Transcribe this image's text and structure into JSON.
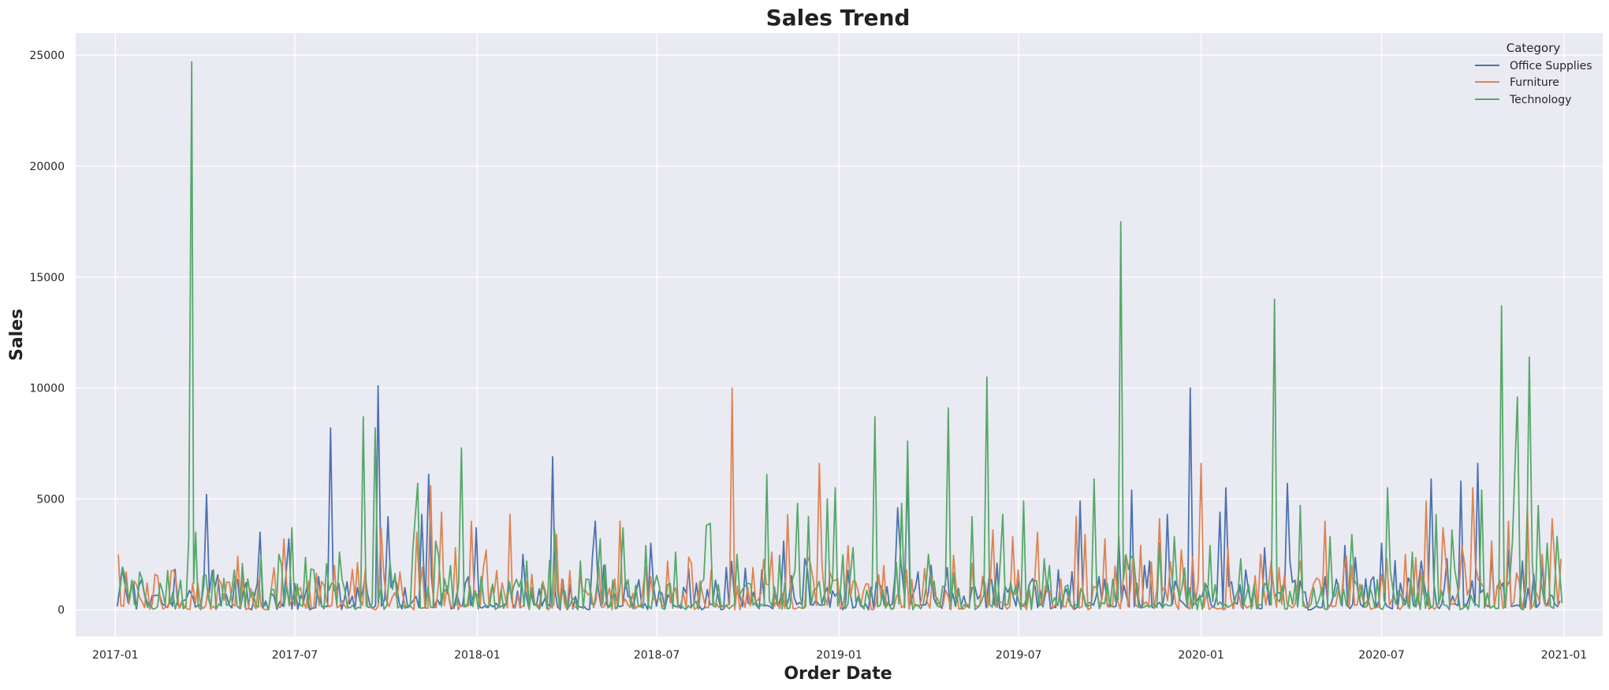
{
  "chart_data": {
    "type": "line",
    "title": "Sales Trend",
    "xlabel": "Order Date",
    "ylabel": "Sales",
    "x_ticks": [
      "2017-01",
      "2017-07",
      "2018-01",
      "2018-07",
      "2019-01",
      "2019-07",
      "2020-01",
      "2020-07",
      "2021-01"
    ],
    "y_ticks": [
      0,
      5000,
      10000,
      15000,
      20000,
      25000
    ],
    "xlim": [
      "2016-11-22",
      "2021-02-09"
    ],
    "ylim": [
      -1200,
      26000
    ],
    "grid": true,
    "legend": {
      "title": "Category",
      "position": "top-right"
    },
    "series": [
      {
        "name": "Office Supplies",
        "color": "#4c72b0",
        "points": [
          [
            "2017-01-03",
            150
          ],
          [
            "2017-01-08",
            1900
          ],
          [
            "2017-01-14",
            300
          ],
          [
            "2017-02-02",
            350
          ],
          [
            "2017-02-20",
            200
          ],
          [
            "2017-03-10",
            400
          ],
          [
            "2017-03-20",
            600
          ],
          [
            "2017-04-03",
            5200
          ],
          [
            "2017-04-20",
            700
          ],
          [
            "2017-05-10",
            800
          ],
          [
            "2017-05-27",
            3500
          ],
          [
            "2017-06-10",
            600
          ],
          [
            "2017-06-25",
            3200
          ],
          [
            "2017-07-10",
            400
          ],
          [
            "2017-07-25",
            1500
          ],
          [
            "2017-08-06",
            8200
          ],
          [
            "2017-08-20",
            500
          ],
          [
            "2017-09-10",
            1500
          ],
          [
            "2017-09-23",
            10100
          ],
          [
            "2017-10-03",
            4200
          ],
          [
            "2017-10-20",
            1000
          ],
          [
            "2017-11-06",
            4300
          ],
          [
            "2017-11-13",
            6100
          ],
          [
            "2017-11-30",
            900
          ],
          [
            "2017-12-20",
            1200
          ],
          [
            "2017-12-31",
            3700
          ],
          [
            "2018-01-20",
            300
          ],
          [
            "2018-02-16",
            2500
          ],
          [
            "2018-03-10",
            500
          ],
          [
            "2018-03-18",
            6900
          ],
          [
            "2018-04-10",
            600
          ],
          [
            "2018-04-30",
            4000
          ],
          [
            "2018-05-20",
            700
          ],
          [
            "2018-06-10",
            800
          ],
          [
            "2018-06-25",
            3000
          ],
          [
            "2018-07-15",
            500
          ],
          [
            "2018-08-10",
            1200
          ],
          [
            "2018-09-01",
            600
          ],
          [
            "2018-09-20",
            800
          ],
          [
            "2018-10-15",
            1800
          ],
          [
            "2018-11-06",
            3100
          ],
          [
            "2018-11-30",
            1800
          ],
          [
            "2018-12-20",
            1000
          ],
          [
            "2019-01-20",
            600
          ],
          [
            "2019-02-10",
            1200
          ],
          [
            "2019-03-01",
            4600
          ],
          [
            "2019-03-11",
            6100
          ],
          [
            "2019-04-01",
            800
          ],
          [
            "2019-04-20",
            1900
          ],
          [
            "2019-05-15",
            1000
          ],
          [
            "2019-06-01",
            1400
          ],
          [
            "2019-06-20",
            800
          ],
          [
            "2019-07-15",
            1400
          ],
          [
            "2019-08-10",
            1800
          ],
          [
            "2019-09-01",
            4900
          ],
          [
            "2019-09-20",
            1500
          ],
          [
            "2019-10-10",
            3300
          ],
          [
            "2019-10-23",
            5400
          ],
          [
            "2019-11-10",
            2200
          ],
          [
            "2019-11-28",
            4300
          ],
          [
            "2019-12-21",
            10000
          ],
          [
            "2020-01-05",
            1200
          ],
          [
            "2020-01-20",
            4400
          ],
          [
            "2020-01-26",
            5500
          ],
          [
            "2020-02-15",
            1800
          ],
          [
            "2020-03-05",
            2800
          ],
          [
            "2020-03-28",
            5700
          ],
          [
            "2020-04-15",
            800
          ],
          [
            "2020-05-05",
            1500
          ],
          [
            "2020-05-25",
            2900
          ],
          [
            "2020-06-15",
            1400
          ],
          [
            "2020-07-01",
            3000
          ],
          [
            "2020-07-20",
            1200
          ],
          [
            "2020-08-10",
            2200
          ],
          [
            "2020-08-20",
            5900
          ],
          [
            "2020-09-05",
            2300
          ],
          [
            "2020-09-19",
            5800
          ],
          [
            "2020-10-06",
            6600
          ],
          [
            "2020-10-20",
            2500
          ],
          [
            "2020-11-06",
            2700
          ],
          [
            "2020-11-20",
            2200
          ],
          [
            "2020-12-10",
            2100
          ],
          [
            "2020-12-28",
            400
          ]
        ]
      },
      {
        "name": "Furniture",
        "color": "#dd8452",
        "points": [
          [
            "2017-01-04",
            2500
          ],
          [
            "2017-01-20",
            1300
          ],
          [
            "2017-02-10",
            1600
          ],
          [
            "2017-03-01",
            1800
          ],
          [
            "2017-03-20",
            1200
          ],
          [
            "2017-04-15",
            1400
          ],
          [
            "2017-05-10",
            1600
          ],
          [
            "2017-06-10",
            1900
          ],
          [
            "2017-06-20",
            3200
          ],
          [
            "2017-07-15",
            1300
          ],
          [
            "2017-08-10",
            2000
          ],
          [
            "2017-09-10",
            1800
          ],
          [
            "2017-09-26",
            3700
          ],
          [
            "2017-10-15",
            1700
          ],
          [
            "2017-11-01",
            3500
          ],
          [
            "2017-11-15",
            5600
          ],
          [
            "2017-11-26",
            4400
          ],
          [
            "2017-12-10",
            2800
          ],
          [
            "2017-12-26",
            4000
          ],
          [
            "2018-01-10",
            2700
          ],
          [
            "2018-02-03",
            4300
          ],
          [
            "2018-02-25",
            1600
          ],
          [
            "2018-03-22",
            3400
          ],
          [
            "2018-04-15",
            1500
          ],
          [
            "2018-05-25",
            4000
          ],
          [
            "2018-06-25",
            1500
          ],
          [
            "2018-07-12",
            2200
          ],
          [
            "2018-08-05",
            2100
          ],
          [
            "2018-08-25",
            1800
          ],
          [
            "2018-09-15",
            10000
          ],
          [
            "2018-10-06",
            1900
          ],
          [
            "2018-10-25",
            2600
          ],
          [
            "2018-11-10",
            4300
          ],
          [
            "2018-11-30",
            2400
          ],
          [
            "2018-12-12",
            6600
          ],
          [
            "2019-01-10",
            2900
          ],
          [
            "2019-02-15",
            2000
          ],
          [
            "2019-03-10",
            1800
          ],
          [
            "2019-04-05",
            1400
          ],
          [
            "2019-05-15",
            2100
          ],
          [
            "2019-06-05",
            3600
          ],
          [
            "2019-06-25",
            3300
          ],
          [
            "2019-07-20",
            3500
          ],
          [
            "2019-08-28",
            4200
          ],
          [
            "2019-09-06",
            3400
          ],
          [
            "2019-09-26",
            3200
          ],
          [
            "2019-11-01",
            2900
          ],
          [
            "2019-11-20",
            4100
          ],
          [
            "2019-12-12",
            2700
          ],
          [
            "2020-01-01",
            6600
          ],
          [
            "2020-01-28",
            2800
          ],
          [
            "2020-03-01",
            2500
          ],
          [
            "2020-04-10",
            2200
          ],
          [
            "2020-05-05",
            4000
          ],
          [
            "2020-06-01",
            2000
          ],
          [
            "2020-07-01",
            1600
          ],
          [
            "2020-07-25",
            2500
          ],
          [
            "2020-08-15",
            4900
          ],
          [
            "2020-09-01",
            3700
          ],
          [
            "2020-09-20",
            2900
          ],
          [
            "2020-10-01",
            5500
          ],
          [
            "2020-10-20",
            3100
          ],
          [
            "2020-11-06",
            4000
          ],
          [
            "2020-11-25",
            4700
          ],
          [
            "2020-12-10",
            2500
          ],
          [
            "2020-12-20",
            4100
          ],
          [
            "2020-12-29",
            2300
          ]
        ]
      },
      {
        "name": "Technology",
        "color": "#55a868",
        "points": [
          [
            "2017-01-05",
            600
          ],
          [
            "2017-01-15",
            400
          ],
          [
            "2017-02-05",
            300
          ],
          [
            "2017-03-05",
            500
          ],
          [
            "2017-03-16",
            3200
          ],
          [
            "2017-03-19",
            24700
          ],
          [
            "2017-03-21",
            1200
          ],
          [
            "2017-03-23",
            3500
          ],
          [
            "2017-04-10",
            1800
          ],
          [
            "2017-05-01",
            1800
          ],
          [
            "2017-05-20",
            800
          ],
          [
            "2017-06-15",
            2500
          ],
          [
            "2017-06-28",
            3700
          ],
          [
            "2017-07-20",
            1800
          ],
          [
            "2017-08-15",
            2600
          ],
          [
            "2017-09-08",
            8700
          ],
          [
            "2017-09-20",
            8200
          ],
          [
            "2017-10-05",
            2200
          ],
          [
            "2017-10-28",
            2700
          ],
          [
            "2017-11-02",
            5700
          ],
          [
            "2017-11-20",
            3100
          ],
          [
            "2017-12-05",
            2000
          ],
          [
            "2017-12-16",
            7300
          ],
          [
            "2018-01-05",
            1500
          ],
          [
            "2018-01-25",
            900
          ],
          [
            "2018-02-25",
            1000
          ],
          [
            "2018-03-20",
            3600
          ],
          [
            "2018-04-15",
            2200
          ],
          [
            "2018-05-05",
            3200
          ],
          [
            "2018-05-28",
            3700
          ],
          [
            "2018-06-20",
            2900
          ],
          [
            "2018-07-20",
            2600
          ],
          [
            "2018-08-20",
            3800
          ],
          [
            "2018-08-24",
            3900
          ],
          [
            "2018-09-20",
            2500
          ],
          [
            "2018-10-20",
            6100
          ],
          [
            "2018-11-20",
            4800
          ],
          [
            "2018-12-01",
            4200
          ],
          [
            "2018-12-20",
            5000
          ],
          [
            "2018-12-28",
            5500
          ],
          [
            "2019-01-15",
            2800
          ],
          [
            "2019-02-06",
            8700
          ],
          [
            "2019-03-05",
            4800
          ],
          [
            "2019-03-11",
            7600
          ],
          [
            "2019-04-01",
            2500
          ],
          [
            "2019-04-21",
            9100
          ],
          [
            "2019-05-15",
            4200
          ],
          [
            "2019-05-30",
            10500
          ],
          [
            "2019-06-15",
            4300
          ],
          [
            "2019-07-06",
            4900
          ],
          [
            "2019-08-01",
            2000
          ],
          [
            "2019-09-15",
            5900
          ],
          [
            "2019-10-12",
            17500
          ],
          [
            "2019-10-25",
            2300
          ],
          [
            "2019-11-20",
            3000
          ],
          [
            "2019-12-05",
            3300
          ],
          [
            "2020-01-10",
            2900
          ],
          [
            "2020-02-10",
            2300
          ],
          [
            "2020-03-05",
            1200
          ],
          [
            "2020-03-15",
            14000
          ],
          [
            "2020-04-10",
            4700
          ],
          [
            "2020-05-10",
            3300
          ],
          [
            "2020-06-01",
            3400
          ],
          [
            "2020-07-07",
            5500
          ],
          [
            "2020-08-01",
            2600
          ],
          [
            "2020-08-25",
            4300
          ],
          [
            "2020-09-10",
            3600
          ],
          [
            "2020-10-10",
            5400
          ],
          [
            "2020-10-30",
            13700
          ],
          [
            "2020-11-10",
            3100
          ],
          [
            "2020-11-15",
            9600
          ],
          [
            "2020-11-27",
            11400
          ],
          [
            "2020-12-06",
            4700
          ],
          [
            "2020-12-15",
            3000
          ],
          [
            "2020-12-25",
            3300
          ],
          [
            "2020-12-30",
            300
          ]
        ]
      }
    ]
  }
}
